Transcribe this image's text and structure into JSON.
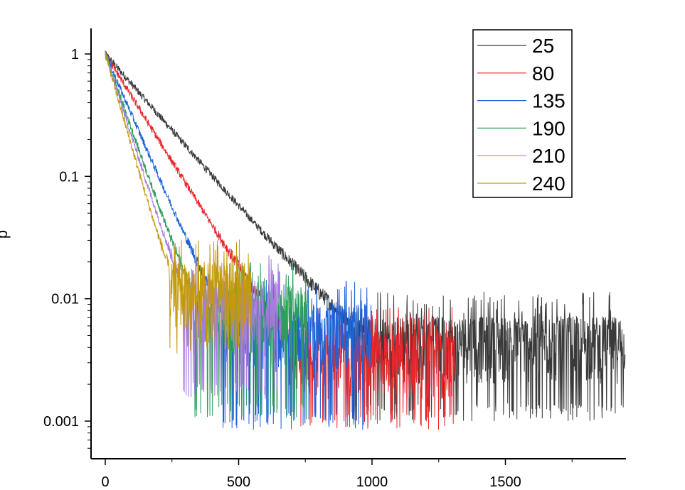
{
  "chart_data": {
    "type": "line",
    "title": "",
    "xlabel": "",
    "ylabel": "p",
    "xlim": [
      -50,
      1950
    ],
    "ylim": [
      0.00055,
      1.6
    ],
    "yscale": "log",
    "x_ticks": [
      0,
      500,
      1000,
      1500
    ],
    "x_tick_labels": [
      "0",
      "500",
      "1000",
      "1500"
    ],
    "y_ticks": [
      1,
      0.1,
      0.01,
      0.001
    ],
    "y_tick_labels": [
      "1",
      "0.1",
      "0.01",
      "0.001"
    ],
    "grid": false,
    "legend_position": "top-right",
    "series": [
      {
        "name": "25",
        "color": "#3a3a3a",
        "decay_per_unit": 0.00575,
        "floor": 0.004,
        "x_end": 1950,
        "noise_min": 0.001
      },
      {
        "name": "80",
        "color": "#e8262b",
        "decay_per_unit": 0.0081,
        "floor": 0.003,
        "x_end": 1310,
        "noise_min": 0.00085
      },
      {
        "name": "135",
        "color": "#1f62d6",
        "decay_per_unit": 0.0116,
        "floor": 0.005,
        "x_end": 1000,
        "noise_min": 0.00085
      },
      {
        "name": "190",
        "color": "#2e9e5b",
        "decay_per_unit": 0.0144,
        "floor": 0.007,
        "x_end": 760,
        "noise_min": 0.001
      },
      {
        "name": "210",
        "color": "#a77be0",
        "decay_per_unit": 0.0158,
        "floor": 0.008,
        "x_end": 660,
        "noise_min": 0.0015
      },
      {
        "name": "240",
        "color": "#c49a0c",
        "decay_per_unit": 0.0178,
        "floor": 0.011,
        "x_end": 550,
        "noise_min": 0.0035
      }
    ]
  }
}
